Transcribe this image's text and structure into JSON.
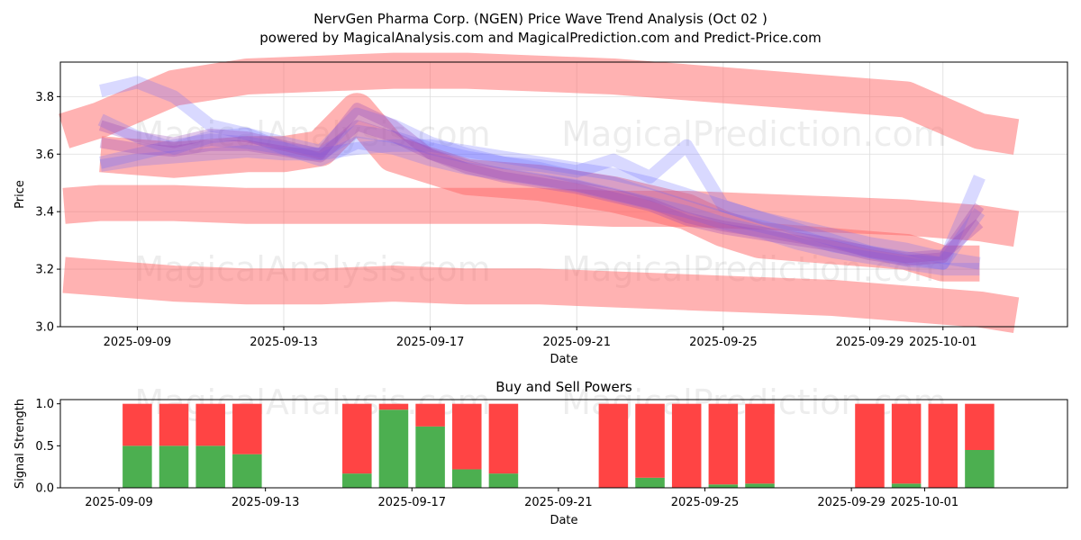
{
  "title_line1": "NervGen Pharma Corp. (NGEN) Price Wave Trend Analysis (Oct 02 )",
  "title_line2": "powered by MagicalAnalysis.com and MagicalPrediction.com and Predict-Price.com",
  "watermarks": [
    "MagicalAnalysis.com",
    "MagicalPrediction.com"
  ],
  "colors": {
    "red_band": "#ff6666",
    "blue_band": "#6666ff",
    "purple_band": "#9944bb",
    "buy": "#4caf50",
    "sell": "#ff4444"
  },
  "chart_data": [
    {
      "type": "line",
      "title": "",
      "xlabel": "Date",
      "ylabel": "Price",
      "xlim_days": [
        -1.1,
        26.4
      ],
      "ylim": [
        3.0,
        3.92
      ],
      "x_ticks": [
        {
          "day": 1,
          "label": "2025-09-09"
        },
        {
          "day": 5,
          "label": "2025-09-13"
        },
        {
          "day": 9,
          "label": "2025-09-17"
        },
        {
          "day": 13,
          "label": "2025-09-21"
        },
        {
          "day": 17,
          "label": "2025-09-25"
        },
        {
          "day": 21,
          "label": "2025-09-29"
        },
        {
          "day": 23,
          "label": "2025-10-01"
        }
      ],
      "y_ticks": [
        {
          "value": 3.0,
          "label": "3.0"
        },
        {
          "value": 3.2,
          "label": "3.2"
        },
        {
          "value": 3.4,
          "label": "3.4"
        },
        {
          "value": 3.6,
          "label": "3.6"
        },
        {
          "value": 3.8,
          "label": "3.8"
        }
      ],
      "red_bands": [
        {
          "x": [
            -1,
            0,
            2,
            4,
            6,
            8,
            10,
            12,
            14,
            16,
            18,
            20,
            22,
            24,
            25
          ],
          "y": [
            3.68,
            3.72,
            3.83,
            3.87,
            3.88,
            3.89,
            3.89,
            3.88,
            3.87,
            3.85,
            3.83,
            3.81,
            3.79,
            3.68,
            3.66
          ]
        },
        {
          "x": [
            -1,
            0,
            2,
            4,
            6,
            8,
            10,
            12,
            14,
            16,
            18,
            20,
            22,
            24,
            25
          ],
          "y": [
            3.42,
            3.43,
            3.43,
            3.42,
            3.42,
            3.42,
            3.42,
            3.42,
            3.41,
            3.41,
            3.4,
            3.39,
            3.38,
            3.36,
            3.34
          ]
        },
        {
          "x": [
            -1,
            0,
            2,
            4,
            6,
            8,
            10,
            12,
            14,
            16,
            18,
            20,
            22,
            24,
            25
          ],
          "y": [
            3.18,
            3.17,
            3.15,
            3.14,
            3.14,
            3.15,
            3.14,
            3.14,
            3.13,
            3.12,
            3.11,
            3.1,
            3.08,
            3.06,
            3.04
          ]
        },
        {
          "x": [
            0,
            2,
            4,
            5,
            6,
            7,
            8,
            10,
            12,
            14,
            16,
            17,
            18,
            20,
            22,
            23,
            24
          ],
          "y": [
            3.6,
            3.58,
            3.6,
            3.6,
            3.62,
            3.75,
            3.6,
            3.52,
            3.5,
            3.46,
            3.4,
            3.34,
            3.3,
            3.28,
            3.26,
            3.22,
            3.22
          ]
        }
      ],
      "blue_bands": [
        {
          "x": [
            0,
            1,
            2,
            3,
            4,
            5,
            6,
            7,
            8,
            9,
            10,
            11,
            12,
            13,
            14,
            15,
            16,
            17,
            18,
            19,
            20,
            21,
            22,
            23,
            24
          ],
          "y": [
            3.56,
            3.58,
            3.59,
            3.6,
            3.61,
            3.6,
            3.6,
            3.62,
            3.63,
            3.63,
            3.61,
            3.59,
            3.57,
            3.55,
            3.53,
            3.5,
            3.46,
            3.42,
            3.38,
            3.35,
            3.32,
            3.29,
            3.27,
            3.24,
            3.22
          ]
        },
        {
          "x": [
            0,
            1,
            2,
            3,
            4,
            5,
            6,
            7,
            8,
            9,
            10,
            11,
            12,
            13,
            14,
            15,
            16,
            17,
            18,
            19,
            20,
            21,
            22,
            23,
            24
          ],
          "y": [
            3.72,
            3.66,
            3.62,
            3.66,
            3.67,
            3.64,
            3.61,
            3.74,
            3.7,
            3.64,
            3.6,
            3.57,
            3.55,
            3.52,
            3.5,
            3.46,
            3.42,
            3.38,
            3.35,
            3.32,
            3.28,
            3.26,
            3.23,
            3.22,
            3.4
          ]
        },
        {
          "x": [
            0,
            1,
            2,
            3,
            4,
            5,
            6,
            7,
            8,
            9,
            10,
            11,
            12,
            13,
            14,
            15,
            16,
            17,
            18,
            19,
            20,
            21,
            22,
            23,
            24
          ],
          "y": [
            3.57,
            3.6,
            3.63,
            3.65,
            3.64,
            3.62,
            3.6,
            3.68,
            3.66,
            3.62,
            3.59,
            3.57,
            3.56,
            3.54,
            3.58,
            3.52,
            3.63,
            3.42,
            3.38,
            3.34,
            3.3,
            3.26,
            3.24,
            3.22,
            3.52
          ]
        },
        {
          "x": [
            0,
            1,
            2,
            3,
            4,
            5,
            6,
            7,
            8,
            9,
            10,
            11,
            12,
            13,
            14,
            15,
            16,
            17,
            18,
            19,
            20,
            21,
            22,
            23,
            24
          ],
          "y": [
            3.82,
            3.85,
            3.8,
            3.7,
            3.67,
            3.62,
            3.58,
            3.64,
            3.62,
            3.58,
            3.55,
            3.53,
            3.51,
            3.49,
            3.46,
            3.43,
            3.4,
            3.36,
            3.33,
            3.29,
            3.26,
            3.24,
            3.22,
            3.2,
            3.2
          ]
        }
      ],
      "purple_bands": [
        {
          "x": [
            0,
            1,
            2,
            3,
            4,
            5,
            6,
            7,
            8,
            9,
            10,
            11,
            12,
            13,
            14,
            15,
            16,
            17,
            18,
            19,
            20,
            21,
            22,
            23,
            24
          ],
          "y": [
            3.7,
            3.66,
            3.64,
            3.67,
            3.66,
            3.63,
            3.6,
            3.76,
            3.7,
            3.6,
            3.55,
            3.52,
            3.5,
            3.48,
            3.45,
            3.42,
            3.37,
            3.34,
            3.32,
            3.3,
            3.28,
            3.25,
            3.23,
            3.24,
            3.42
          ]
        },
        {
          "x": [
            0,
            1,
            2,
            3,
            4,
            5,
            6,
            7,
            8,
            9,
            10,
            11,
            12,
            13,
            14,
            15,
            16,
            17,
            18,
            19,
            20,
            21,
            22,
            23,
            24
          ],
          "y": [
            3.64,
            3.62,
            3.61,
            3.63,
            3.63,
            3.61,
            3.59,
            3.7,
            3.66,
            3.6,
            3.56,
            3.53,
            3.51,
            3.49,
            3.46,
            3.43,
            3.38,
            3.35,
            3.33,
            3.31,
            3.29,
            3.26,
            3.24,
            3.25,
            3.36
          ]
        }
      ]
    },
    {
      "type": "bar",
      "title": "Buy and Sell Powers",
      "xlabel": "Date",
      "ylabel": "Signal Strength",
      "ylim": [
        0,
        1.05
      ],
      "y_ticks": [
        {
          "value": 0.0,
          "label": "0.0"
        },
        {
          "value": 0.5,
          "label": "0.5"
        },
        {
          "value": 1.0,
          "label": "1.0"
        }
      ],
      "x_ticks": [
        {
          "day": 1,
          "label": "2025-09-09"
        },
        {
          "day": 5,
          "label": "2025-09-13"
        },
        {
          "day": 9,
          "label": "2025-09-17"
        },
        {
          "day": 13,
          "label": "2025-09-21"
        },
        {
          "day": 17,
          "label": "2025-09-25"
        },
        {
          "day": 21,
          "label": "2025-09-29"
        },
        {
          "day": 23,
          "label": "2025-10-01"
        }
      ],
      "days": [
        1,
        2,
        3,
        4,
        7,
        8,
        9,
        10,
        11,
        14,
        15,
        16,
        17,
        18,
        21,
        22,
        23,
        24
      ],
      "buy": [
        0.5,
        0.5,
        0.5,
        0.4,
        0.17,
        0.93,
        0.73,
        0.22,
        0.17,
        0.0,
        0.12,
        0.0,
        0.04,
        0.05,
        0.0,
        0.05,
        0.0,
        0.45
      ],
      "sell": [
        0.5,
        0.5,
        0.5,
        0.6,
        0.83,
        0.07,
        0.27,
        0.78,
        0.83,
        1.0,
        0.88,
        1.0,
        0.96,
        0.95,
        1.0,
        0.95,
        1.0,
        0.55
      ]
    }
  ]
}
